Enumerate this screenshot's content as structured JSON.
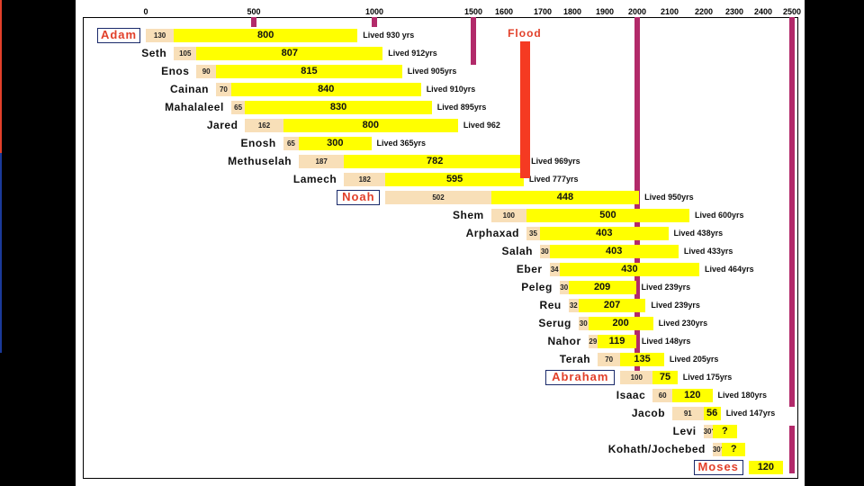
{
  "chart_data": {
    "type": "bar",
    "x_axis_ticks": [
      "0",
      "500",
      "1000",
      "1500",
      "1600",
      "1700",
      "1800",
      "1900",
      "2000",
      "2100",
      "2200",
      "2300",
      "2400",
      "2500"
    ],
    "tick_values": [
      0,
      500,
      1000,
      1500,
      1600,
      1700,
      1800,
      1900,
      2000,
      2100,
      2200,
      2300,
      2400,
      2500
    ],
    "flood_label": "Flood",
    "flood_year": 1656,
    "colors": {
      "before_son": "#f8dfb8",
      "after_son": "#ffff00",
      "name_highlight": "#e2402a",
      "column": "#b22a6a",
      "flood": "#f53a22"
    },
    "rows": [
      {
        "name": "Adam",
        "boxed": true,
        "start": 0,
        "pre": 130,
        "pre_label": "130",
        "post": 800,
        "post_label": "800",
        "lived": "Lived 930 yrs"
      },
      {
        "name": "Seth",
        "boxed": false,
        "start": 130,
        "pre": 105,
        "pre_label": "105",
        "post": 807,
        "post_label": "807",
        "lived": "Lived 912yrs"
      },
      {
        "name": "Enos",
        "boxed": false,
        "start": 235,
        "pre": 90,
        "pre_label": "90",
        "post": 815,
        "post_label": "815",
        "lived": "Lived 905yrs"
      },
      {
        "name": "Cainan",
        "boxed": false,
        "start": 325,
        "pre": 70,
        "pre_label": "70",
        "post": 840,
        "post_label": "840",
        "lived": "Lived 910yrs"
      },
      {
        "name": "Mahalaleel",
        "boxed": false,
        "start": 395,
        "pre": 65,
        "pre_label": "65",
        "post": 830,
        "post_label": "830",
        "lived": "Lived 895yrs"
      },
      {
        "name": "Jared",
        "boxed": false,
        "start": 460,
        "pre": 162,
        "pre_label": "162",
        "post": 800,
        "post_label": "800",
        "lived": "Lived 962"
      },
      {
        "name": "Enosh",
        "boxed": false,
        "start": 622,
        "pre": 65,
        "pre_label": "65",
        "post": 300,
        "post_label": "300",
        "lived": "Lived 365yrs"
      },
      {
        "name": "Methuselah",
        "boxed": false,
        "start": 687,
        "pre": 187,
        "pre_label": "187",
        "post": 782,
        "post_label": "782",
        "lived": "Lived 969yrs"
      },
      {
        "name": "Lamech",
        "boxed": false,
        "start": 874,
        "pre": 182,
        "pre_label": "182",
        "post": 595,
        "post_label": "595",
        "lived": "Lived 777yrs"
      },
      {
        "name": "Noah",
        "boxed": true,
        "start": 1056,
        "pre": 502,
        "pre_label": "502",
        "post": 448,
        "post_label": "448",
        "lived": "Lived 950yrs"
      },
      {
        "name": "Shem",
        "boxed": false,
        "start": 1558,
        "pre": 100,
        "pre_label": "100",
        "post": 500,
        "post_label": "500",
        "lived": "Lived 600yrs"
      },
      {
        "name": "Arphaxad",
        "boxed": false,
        "start": 1658,
        "pre": 35,
        "pre_label": "35",
        "post": 403,
        "post_label": "403",
        "lived": "Lived 438yrs"
      },
      {
        "name": "Salah",
        "boxed": false,
        "start": 1693,
        "pre": 30,
        "pre_label": "30",
        "post": 403,
        "post_label": "403",
        "lived": "Lived 433yrs"
      },
      {
        "name": "Eber",
        "boxed": false,
        "start": 1723,
        "pre": 34,
        "pre_label": "34",
        "post": 430,
        "post_label": "430",
        "lived": "Lived 464yrs"
      },
      {
        "name": "Peleg",
        "boxed": false,
        "start": 1757,
        "pre": 30,
        "pre_label": "30",
        "post": 209,
        "post_label": "209",
        "lived": "Lived 239yrs"
      },
      {
        "name": "Reu",
        "boxed": false,
        "start": 1787,
        "pre": 32,
        "pre_label": "32",
        "post": 207,
        "post_label": "207",
        "lived": "Lived 239yrs"
      },
      {
        "name": "Serug",
        "boxed": false,
        "start": 1819,
        "pre": 30,
        "pre_label": "30",
        "post": 200,
        "post_label": "200",
        "lived": "Lived 230yrs"
      },
      {
        "name": "Nahor",
        "boxed": false,
        "start": 1849,
        "pre": 29,
        "pre_label": "29",
        "post": 119,
        "post_label": "119",
        "lived": "Lived 148yrs"
      },
      {
        "name": "Terah",
        "boxed": false,
        "start": 1878,
        "pre": 70,
        "pre_label": "70",
        "post": 135,
        "post_label": "135",
        "lived": "Lived 205yrs"
      },
      {
        "name": "Abraham",
        "boxed": true,
        "start": 1948,
        "pre": 100,
        "pre_label": "100",
        "post": 75,
        "post_label": "75",
        "lived": "Lived 175yrs"
      },
      {
        "name": "Isaac",
        "boxed": false,
        "start": 2048,
        "pre": 60,
        "pre_label": "60",
        "post": 120,
        "post_label": "120",
        "lived": "Lived 180yrs"
      },
      {
        "name": "Jacob",
        "boxed": false,
        "start": 2108,
        "pre": 91,
        "pre_label": "91",
        "post": 56,
        "post_label": "56",
        "lived": "Lived 147yrs"
      },
      {
        "name": "Levi",
        "boxed": false,
        "start": 2199,
        "pre": 30,
        "pre_label": "30?",
        "post": 80,
        "post_label": "?",
        "lived": ""
      },
      {
        "name": "Kohath/Jochebed",
        "boxed": false,
        "start": 2229,
        "pre": 30,
        "pre_label": "30?",
        "post": 80,
        "post_label": "?",
        "lived": ""
      },
      {
        "name": "Moses",
        "boxed": true,
        "start": 2349,
        "pre": 0,
        "pre_label": "",
        "post": 120,
        "post_label": "120",
        "lived": ""
      }
    ]
  }
}
